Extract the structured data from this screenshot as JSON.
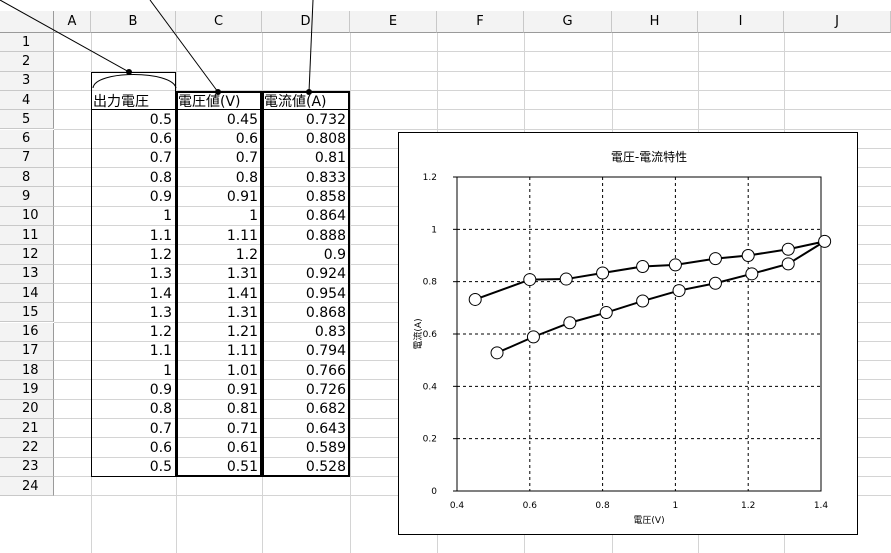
{
  "columns": [
    "A",
    "B",
    "C",
    "D",
    "E",
    "F",
    "G",
    "H",
    "I",
    "J"
  ],
  "rows": [
    "1",
    "2",
    "3",
    "4",
    "5",
    "6",
    "7",
    "8",
    "9",
    "10",
    "11",
    "12",
    "13",
    "14",
    "15",
    "16",
    "17",
    "18",
    "19",
    "20",
    "21",
    "22",
    "23",
    "24"
  ],
  "table": {
    "headers": [
      "出力電圧",
      "電圧値(V)",
      "電流値(A)"
    ],
    "output_voltage": [
      "0.5",
      "0.6",
      "0.7",
      "0.8",
      "0.9",
      "1",
      "1.1",
      "1.2",
      "1.3",
      "1.4",
      "1.3",
      "1.2",
      "1.1",
      "1",
      "0.9",
      "0.8",
      "0.7",
      "0.6",
      "0.5"
    ],
    "voltage": [
      "0.45",
      "0.6",
      "0.7",
      "0.8",
      "0.91",
      "1",
      "1.11",
      "1.2",
      "1.31",
      "1.41",
      "1.31",
      "1.21",
      "1.11",
      "1.01",
      "0.91",
      "0.81",
      "0.71",
      "0.61",
      "0.51"
    ],
    "current": [
      "0.732",
      "0.808",
      "0.81",
      "0.833",
      "0.858",
      "0.864",
      "0.888",
      "0.9",
      "0.924",
      "0.954",
      "0.868",
      "0.83",
      "0.794",
      "0.766",
      "0.726",
      "0.682",
      "0.643",
      "0.589",
      "0.528"
    ]
  },
  "chart_data": {
    "type": "scatter",
    "title": "電圧-電流特性",
    "xlabel": "電圧(V)",
    "ylabel": "電流(A)",
    "xlim": [
      0.4,
      1.4
    ],
    "ylim": [
      0,
      1.2
    ],
    "x_ticks": [
      "0.4",
      "0.6",
      "0.8",
      "1",
      "1.2",
      "1.4"
    ],
    "y_ticks": [
      "0",
      "0.2",
      "0.4",
      "0.6",
      "0.8",
      "1",
      "1.2"
    ],
    "grid": true,
    "series": [
      {
        "x": [
          0.45,
          0.6,
          0.7,
          0.8,
          0.91,
          1,
          1.11,
          1.2,
          1.31,
          1.41,
          1.31,
          1.21,
          1.11,
          1.01,
          0.91,
          0.81,
          0.71,
          0.61,
          0.51
        ],
        "y": [
          0.732,
          0.808,
          0.81,
          0.833,
          0.858,
          0.864,
          0.888,
          0.9,
          0.924,
          0.954,
          0.868,
          0.83,
          0.794,
          0.766,
          0.726,
          0.682,
          0.643,
          0.589,
          0.528
        ]
      }
    ]
  }
}
